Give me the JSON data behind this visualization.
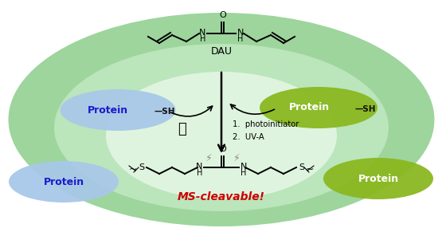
{
  "bg_color": "#ffffff",
  "ellipse_big_color": "#7cc87c",
  "protein_blue_color": "#a8c8e8",
  "protein_green_color": "#8ab820",
  "protein_text_blue": "#1a1acc",
  "protein_text_green": "#ffffff",
  "bond_color": "#000000",
  "ms_cleavable_color": "#cc0000",
  "dau_label": "DAU",
  "ms_label": "MS-cleavable!",
  "photo_label": "1.  photoinitiator",
  "uva_label": "2.  UV-A",
  "sh_label": "—SH",
  "protein_label": "Protein",
  "inner_ellipse_color": "#c8ecc8",
  "inner2_ellipse_color": "#e8f8e8"
}
